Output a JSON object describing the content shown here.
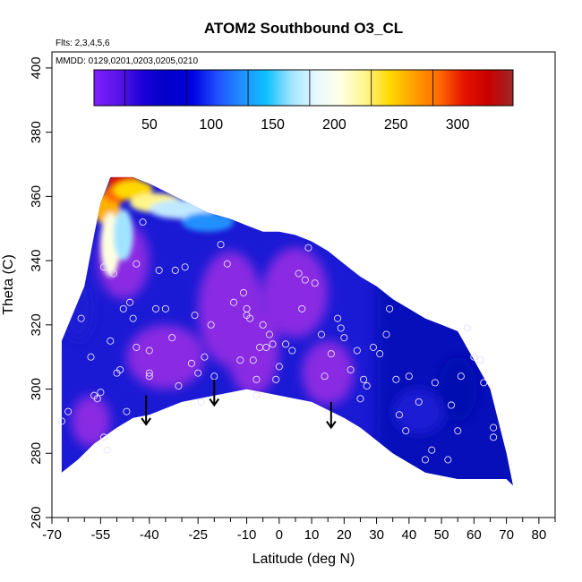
{
  "chart_data": {
    "type": "heatmap",
    "title": "ATOM2 Southbound O3_CL",
    "subtitle_flights": "Flts: 2,3,4,5,6",
    "subtitle_dates": "MMDD: 0129,0201,0203,0205,0210",
    "xlabel": "Latitude (deg N)",
    "ylabel": "Theta (C)",
    "xlim": [
      -70,
      85
    ],
    "ylim": [
      260,
      405
    ],
    "x_ticks": [
      -70,
      -55,
      -40,
      -25,
      -10,
      0,
      10,
      20,
      30,
      40,
      50,
      60,
      70,
      80
    ],
    "x_minor_ticks": [
      -65,
      -60,
      -50,
      -45,
      -35,
      -30,
      -20,
      -15,
      -5,
      5,
      15,
      25,
      35,
      45,
      55,
      65,
      75,
      85
    ],
    "y_ticks": [
      260,
      280,
      300,
      320,
      340,
      360,
      380,
      400
    ],
    "colorbar": {
      "min": 5,
      "max": 345,
      "ticks": [
        50,
        100,
        150,
        200,
        250,
        300
      ],
      "colors": [
        "#7f1fff",
        "#5a14e8",
        "#1a00d8",
        "#0000c8",
        "#0000e0",
        "#1e50ff",
        "#2090ff",
        "#10c0ff",
        "#a0e4ff",
        "#e6f8ff",
        "#ffffe6",
        "#fff58a",
        "#ffd800",
        "#ff9f00",
        "#ff6a00",
        "#e61400",
        "#c80000",
        "#a02828"
      ],
      "dividers": [
        30,
        80,
        130,
        180,
        230,
        280
      ]
    },
    "field_colors": {
      "low": "#8a2be2",
      "medium": "#1a1ad4",
      "high": "#0008b0",
      "very_high": "#e00000"
    },
    "coverage_envelope": {
      "top": [
        [
          -67,
          315
        ],
        [
          -60,
          332
        ],
        [
          -57,
          348
        ],
        [
          -55,
          358
        ],
        [
          -52,
          366
        ],
        [
          -45,
          366
        ],
        [
          -40,
          364
        ],
        [
          -30,
          359
        ],
        [
          -22,
          355
        ],
        [
          -15,
          353
        ],
        [
          -10,
          351
        ],
        [
          -5,
          349
        ],
        [
          0,
          349
        ],
        [
          5,
          348
        ],
        [
          10,
          346
        ],
        [
          15,
          343
        ],
        [
          20,
          339
        ],
        [
          25,
          335
        ],
        [
          30,
          332
        ],
        [
          35,
          328
        ],
        [
          40,
          325
        ],
        [
          45,
          322
        ],
        [
          50,
          320
        ],
        [
          55,
          318
        ],
        [
          60,
          309
        ],
        [
          65,
          300
        ],
        [
          70,
          280
        ],
        [
          72,
          270
        ]
      ],
      "bottom": [
        [
          -67,
          274
        ],
        [
          -62,
          278
        ],
        [
          -57,
          283
        ],
        [
          -50,
          288
        ],
        [
          -45,
          291
        ],
        [
          -40,
          292
        ],
        [
          -30,
          296
        ],
        [
          -20,
          298
        ],
        [
          -10,
          300
        ],
        [
          -5,
          299
        ],
        [
          0,
          298
        ],
        [
          10,
          296
        ],
        [
          20,
          291
        ],
        [
          25,
          288
        ],
        [
          30,
          284
        ],
        [
          35,
          280
        ],
        [
          40,
          277
        ],
        [
          45,
          274
        ],
        [
          50,
          273
        ],
        [
          55,
          272
        ],
        [
          60,
          272
        ],
        [
          65,
          272
        ],
        [
          70,
          272
        ]
      ]
    },
    "blobs": [
      {
        "x": -48,
        "y": 340,
        "rx": 8,
        "ry": 12,
        "level": "low"
      },
      {
        "x": -35,
        "y": 310,
        "rx": 12,
        "ry": 10,
        "level": "low"
      },
      {
        "x": -15,
        "y": 325,
        "rx": 10,
        "ry": 18,
        "level": "low"
      },
      {
        "x": -8,
        "y": 312,
        "rx": 8,
        "ry": 14,
        "level": "low"
      },
      {
        "x": 5,
        "y": 330,
        "rx": 10,
        "ry": 14,
        "level": "low"
      },
      {
        "x": -58,
        "y": 290,
        "rx": 6,
        "ry": 8,
        "level": "low"
      },
      {
        "x": 15,
        "y": 305,
        "rx": 8,
        "ry": 10,
        "level": "low"
      },
      {
        "x": 43,
        "y": 293,
        "rx": 8,
        "ry": 7,
        "level": "medium"
      },
      {
        "x": 55,
        "y": 300,
        "rx": 6,
        "ry": 10,
        "level": "high"
      },
      {
        "x": -62,
        "y": 325,
        "rx": 5,
        "ry": 10,
        "level": "medium"
      }
    ],
    "high_cap": [
      {
        "x": -53,
        "y": 356,
        "rx": 4,
        "ry": 5,
        "color": "#ffb000"
      },
      {
        "x": -50,
        "y": 361,
        "rx": 4,
        "ry": 3,
        "color": "#ff6a00"
      },
      {
        "x": -48,
        "y": 365,
        "rx": 5,
        "ry": 2,
        "color": "#e61400"
      },
      {
        "x": -45,
        "y": 362,
        "rx": 6,
        "ry": 3,
        "color": "#ffd800"
      },
      {
        "x": -38,
        "y": 358,
        "rx": 8,
        "ry": 3,
        "color": "#fff58a"
      },
      {
        "x": -30,
        "y": 356,
        "rx": 10,
        "ry": 3,
        "color": "#c0e8ff"
      },
      {
        "x": -52,
        "y": 345,
        "rx": 3,
        "ry": 10,
        "color": "#ffffe0"
      },
      {
        "x": -48,
        "y": 348,
        "rx": 3,
        "ry": 8,
        "color": "#a0e4ff"
      },
      {
        "x": -22,
        "y": 352,
        "rx": 8,
        "ry": 3,
        "color": "#2090ff"
      }
    ],
    "observations": [
      [
        -67,
        290
      ],
      [
        -65,
        293
      ],
      [
        -61,
        322
      ],
      [
        -58,
        310
      ],
      [
        -57,
        298
      ],
      [
        -56,
        297
      ],
      [
        -55,
        299
      ],
      [
        -54,
        285
      ],
      [
        -53,
        281
      ],
      [
        -54,
        338
      ],
      [
        -52,
        315
      ],
      [
        -51,
        336
      ],
      [
        -50,
        305
      ],
      [
        -49,
        306
      ],
      [
        -48,
        325
      ],
      [
        -47,
        293
      ],
      [
        -46,
        327
      ],
      [
        -45,
        322
      ],
      [
        -44,
        313
      ],
      [
        -44,
        339
      ],
      [
        -42,
        352
      ],
      [
        -40,
        312
      ],
      [
        -40,
        305
      ],
      [
        -40,
        304
      ],
      [
        -38,
        325
      ],
      [
        -37,
        337
      ],
      [
        -35,
        325
      ],
      [
        -33,
        316
      ],
      [
        -32,
        337
      ],
      [
        -31,
        301
      ],
      [
        -29,
        338
      ],
      [
        -27,
        308
      ],
      [
        -26,
        323
      ],
      [
        -25,
        305
      ],
      [
        -24,
        296
      ],
      [
        -23,
        310
      ],
      [
        -21,
        320
      ],
      [
        -20,
        304
      ],
      [
        -18,
        345
      ],
      [
        -16,
        339
      ],
      [
        -14,
        327
      ],
      [
        -12,
        309
      ],
      [
        -11,
        330
      ],
      [
        -10,
        325
      ],
      [
        -10,
        323
      ],
      [
        -9,
        322
      ],
      [
        -8,
        309
      ],
      [
        -7,
        303
      ],
      [
        -7,
        298
      ],
      [
        -6,
        313
      ],
      [
        -5,
        320
      ],
      [
        -4,
        313
      ],
      [
        -3,
        317
      ],
      [
        -2,
        314
      ],
      [
        -1,
        303
      ],
      [
        0,
        307
      ],
      [
        2,
        314
      ],
      [
        4,
        312
      ],
      [
        6,
        336
      ],
      [
        7,
        325
      ],
      [
        8,
        334
      ],
      [
        9,
        344
      ],
      [
        11,
        333
      ],
      [
        13,
        317
      ],
      [
        14,
        304
      ],
      [
        16,
        311
      ],
      [
        18,
        322
      ],
      [
        19,
        319
      ],
      [
        20,
        316
      ],
      [
        22,
        306
      ],
      [
        24,
        312
      ],
      [
        25,
        297
      ],
      [
        26,
        303
      ],
      [
        27,
        301
      ],
      [
        29,
        313
      ],
      [
        31,
        311
      ],
      [
        33,
        317
      ],
      [
        34,
        325
      ],
      [
        36,
        303
      ],
      [
        37,
        292
      ],
      [
        39,
        287
      ],
      [
        40,
        304
      ],
      [
        43,
        296
      ],
      [
        45,
        278
      ],
      [
        47,
        281
      ],
      [
        48,
        302
      ],
      [
        52,
        278
      ],
      [
        53,
        295
      ],
      [
        55,
        287
      ],
      [
        56,
        304
      ],
      [
        58,
        319
      ],
      [
        60,
        310
      ],
      [
        62,
        309
      ],
      [
        63,
        302
      ],
      [
        66,
        288
      ],
      [
        66,
        285
      ]
    ],
    "arrows": [
      {
        "x": -41,
        "y_start": 298,
        "y_end": 289
      },
      {
        "x": -20,
        "y_start": 303,
        "y_end": 295
      },
      {
        "x": 16,
        "y_start": 296,
        "y_end": 288
      }
    ]
  }
}
